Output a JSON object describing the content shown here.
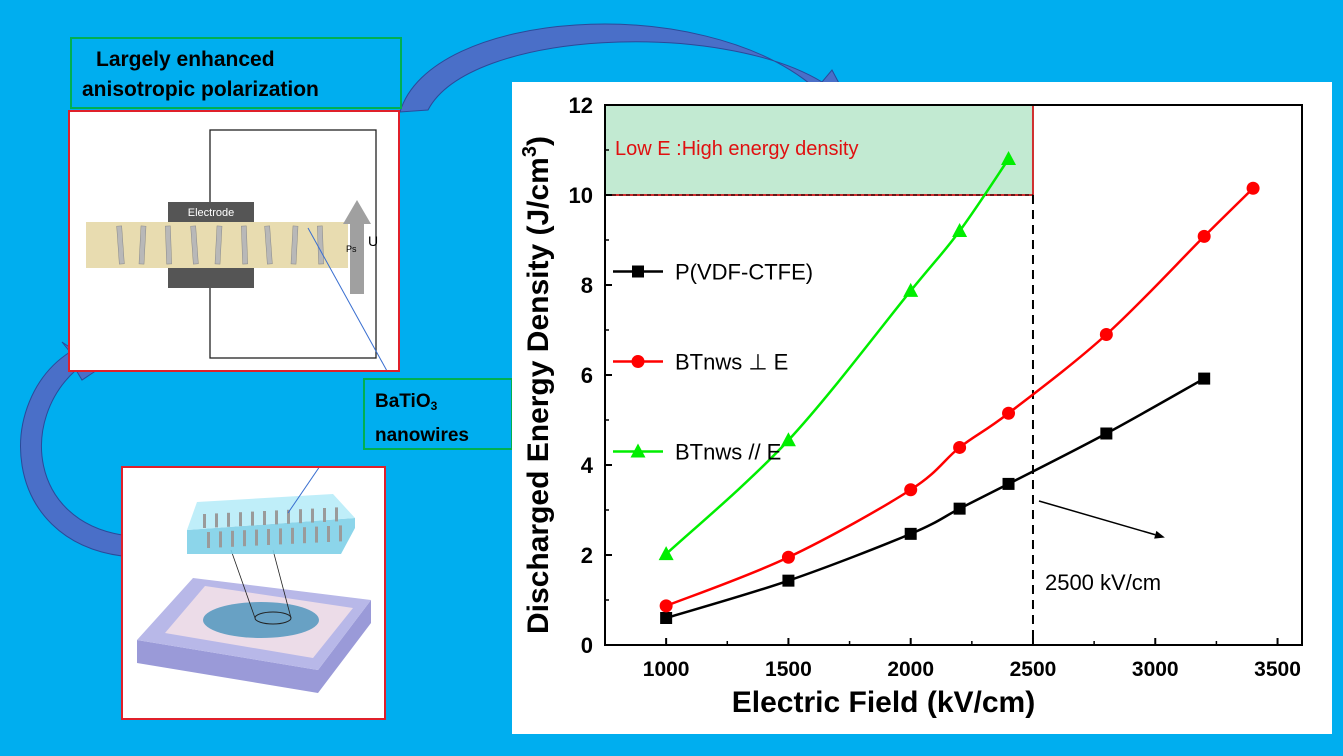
{
  "title_box": {
    "line1": "Largely enhanced",
    "line2": "anisotropic polarization"
  },
  "schematic": {
    "electrode_label": "Electrode",
    "voltage_label": "U",
    "polarization_label": "Ps"
  },
  "nanowire_box": {
    "line1_main": "BaTiO",
    "line1_sub": "3",
    "line2": "nanowires"
  },
  "chart_data": {
    "type": "line",
    "xlabel": "Electric Field (kV/cm)",
    "ylabel": "Discharged Energy Density (J/cm",
    "ylabel_sup": "3",
    "ylabel_close": ")",
    "xlim": [
      750,
      3600
    ],
    "ylim": [
      0,
      12
    ],
    "xticks": [
      1000,
      1500,
      2000,
      2500,
      3000,
      3500
    ],
    "yticks": [
      0,
      2,
      4,
      6,
      8,
      10,
      12
    ],
    "legend_position": "middle-left",
    "series": [
      {
        "name": "P(VDF-CTFE)",
        "color": "#000000",
        "marker": "square",
        "x": [
          1000,
          1500,
          2000,
          2200,
          2400,
          2800,
          3200
        ],
        "y": [
          0.6,
          1.43,
          2.47,
          3.03,
          3.58,
          4.7,
          5.92
        ]
      },
      {
        "name": "BTnws ⊥ E",
        "color": "#ff0000",
        "marker": "circle",
        "x": [
          1000,
          1500,
          2000,
          2200,
          2400,
          2800,
          3200,
          3400
        ],
        "y": [
          0.87,
          1.95,
          3.45,
          4.39,
          5.15,
          6.9,
          9.08,
          10.15
        ]
      },
      {
        "name": "BTnws  // E",
        "color": "#00ee00",
        "marker": "triangle",
        "x": [
          1000,
          1500,
          2000,
          2200,
          2400
        ],
        "y": [
          2.02,
          4.55,
          7.87,
          9.2,
          10.8
        ]
      }
    ],
    "annotations": {
      "highlight_region": {
        "x": [
          750,
          2500
        ],
        "y": [
          10,
          12
        ],
        "label": "Low E :High energy density"
      },
      "vertical_line": {
        "x": 2500,
        "label": "2500 kV/cm"
      }
    }
  }
}
